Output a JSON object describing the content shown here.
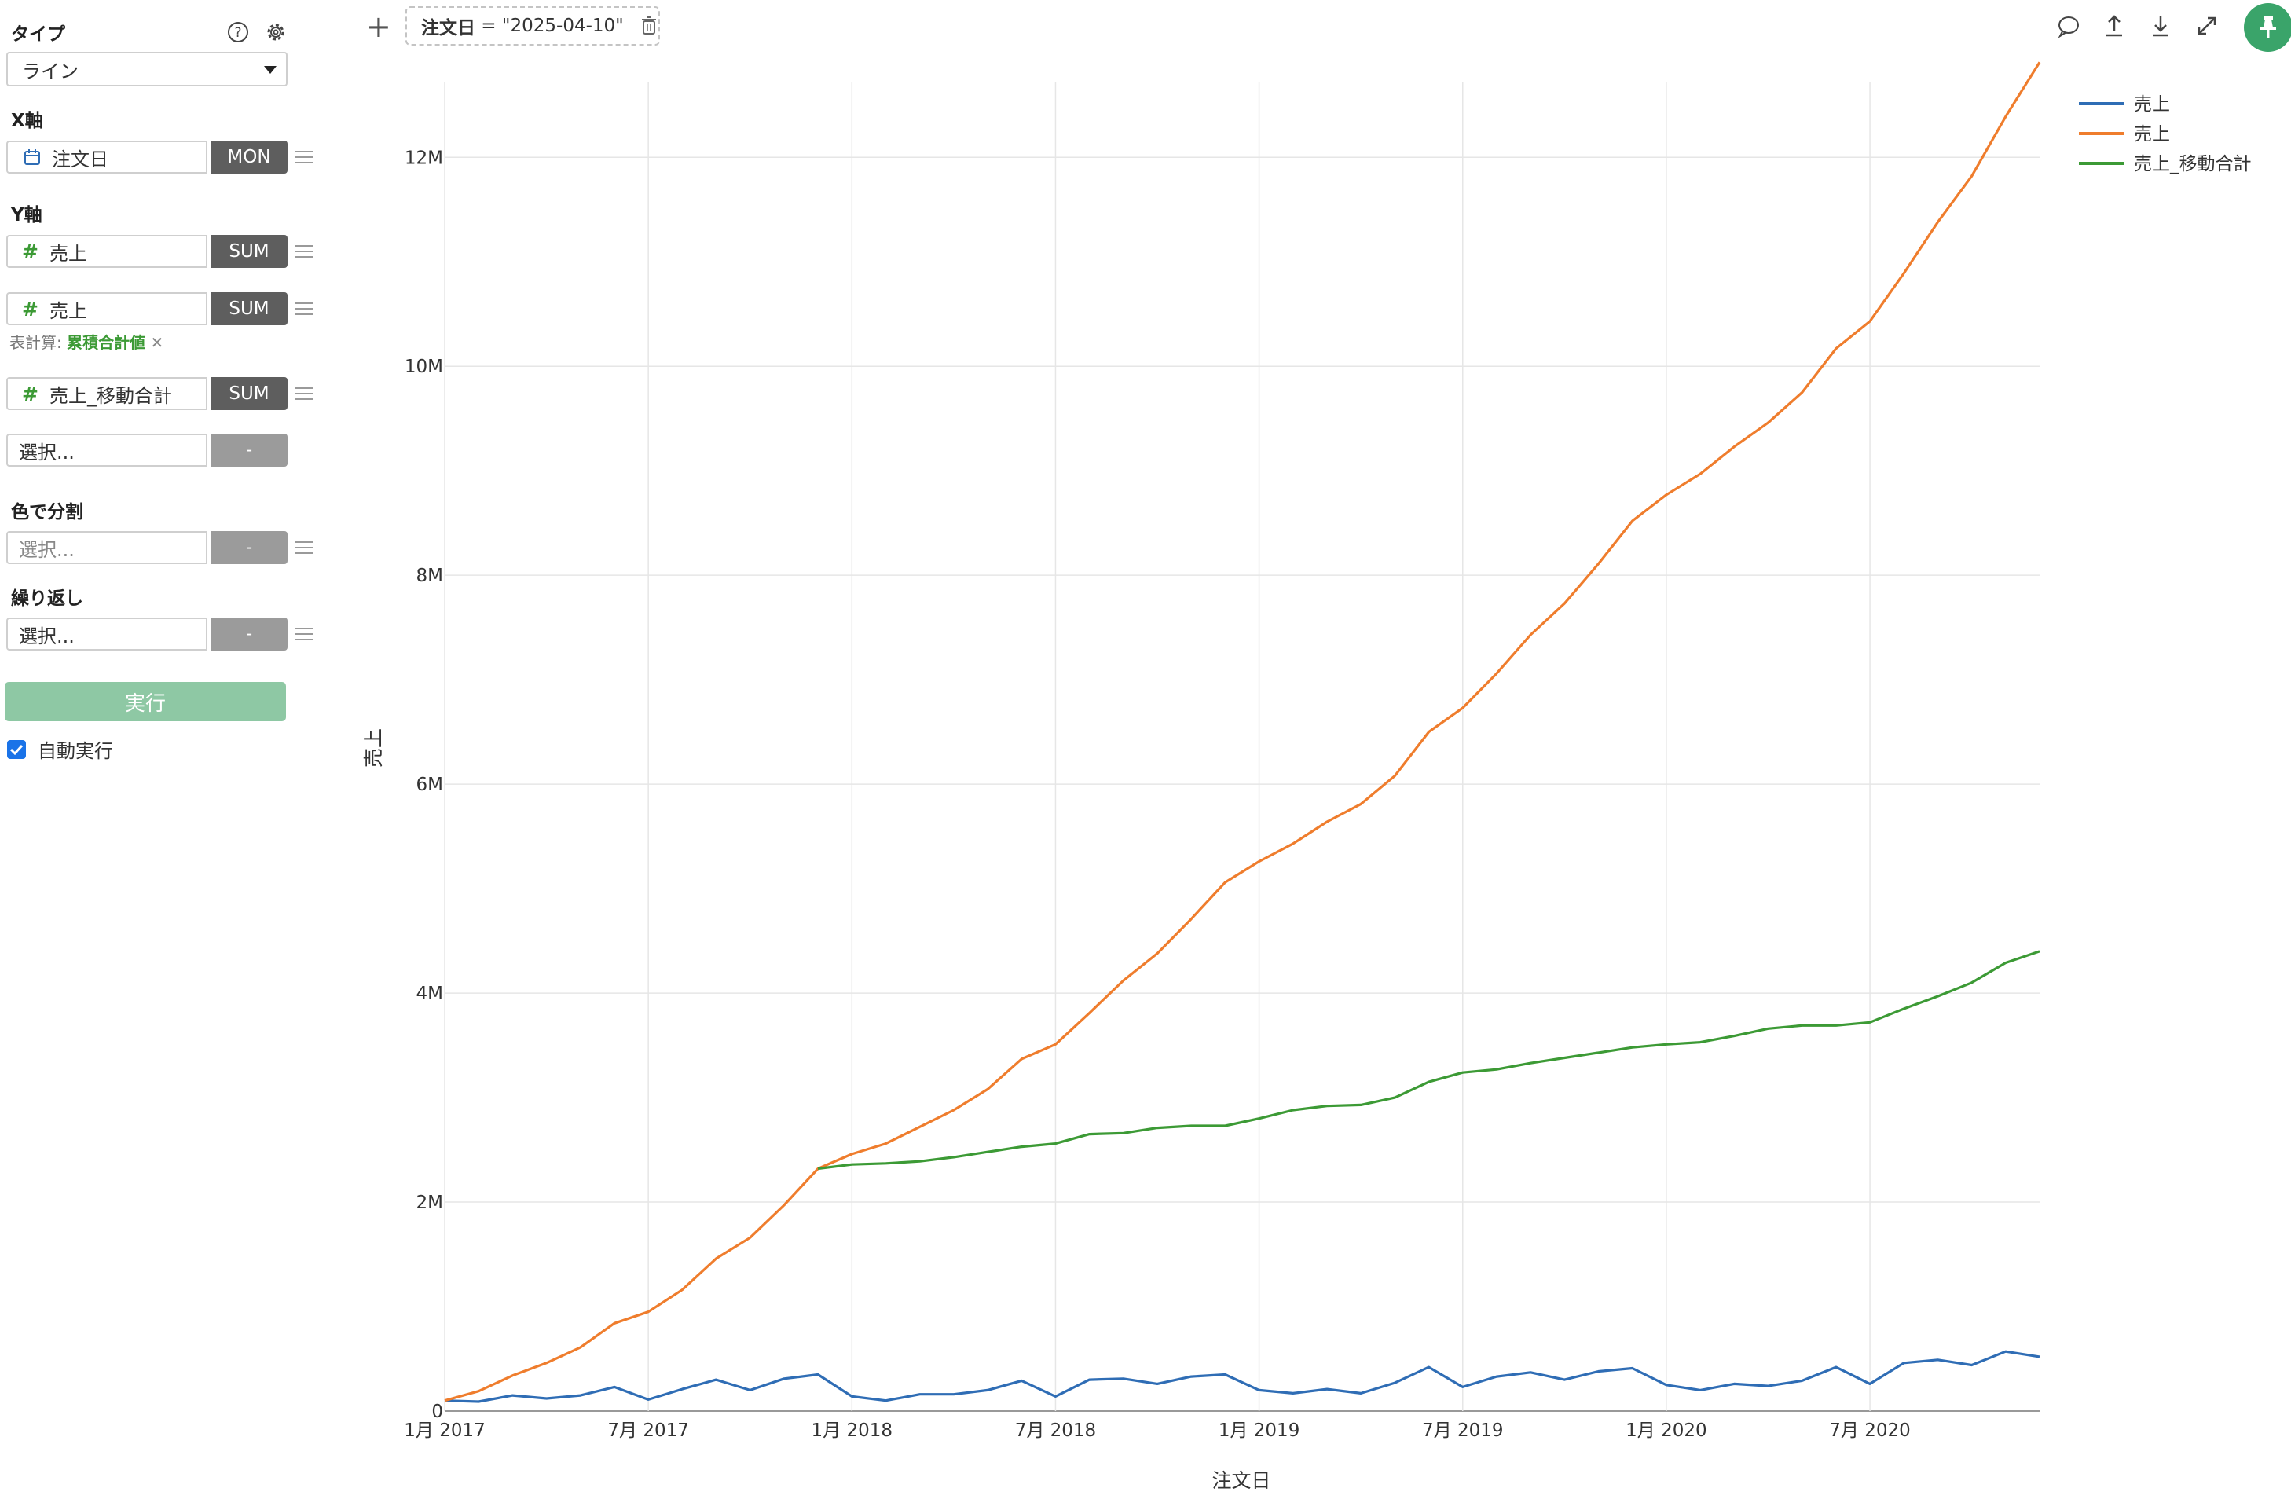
{
  "sidebar": {
    "type_label": "タイプ",
    "type_value": "ライン",
    "x_label": "X軸",
    "x_field": {
      "name": "注文日",
      "agg": "MON"
    },
    "y_label": "Y軸",
    "y_fields": [
      {
        "name": "売上",
        "agg": "SUM"
      },
      {
        "name": "売上",
        "agg": "SUM"
      },
      {
        "name": "売上_移動合計",
        "agg": "SUM"
      }
    ],
    "table_calc_prefix": "表計算:",
    "table_calc_value": "累積合計値",
    "select_placeholder": "選択...",
    "dash": "-",
    "color_split_label": "色で分割",
    "repeat_label": "繰り返し",
    "run_label": "実行",
    "auto_run_label": "自動実行"
  },
  "toolbar": {
    "filter_field": "注文日",
    "filter_op": " = ",
    "filter_value": "\"2025-04-10\""
  },
  "chart_data": {
    "type": "line",
    "xlabel": "注文日",
    "ylabel": "売上",
    "x_tick_labels": [
      "1月 2017",
      "7月 2017",
      "1月 2018",
      "7月 2018",
      "1月 2019",
      "7月 2019",
      "1月 2020",
      "7月 2020"
    ],
    "y_tick_labels": [
      "0",
      "2M",
      "4M",
      "6M",
      "8M",
      "10M",
      "12M"
    ],
    "ylim": [
      0,
      13100000
    ],
    "grid": true,
    "legend_position": "top-right",
    "x": [
      "2017-01",
      "2017-02",
      "2017-03",
      "2017-04",
      "2017-05",
      "2017-06",
      "2017-07",
      "2017-08",
      "2017-09",
      "2017-10",
      "2017-11",
      "2017-12",
      "2018-01",
      "2018-02",
      "2018-03",
      "2018-04",
      "2018-05",
      "2018-06",
      "2018-07",
      "2018-08",
      "2018-09",
      "2018-10",
      "2018-11",
      "2018-12",
      "2019-01",
      "2019-02",
      "2019-03",
      "2019-04",
      "2019-05",
      "2019-06",
      "2019-07",
      "2019-08",
      "2019-09",
      "2019-10",
      "2019-11",
      "2019-12",
      "2020-01",
      "2020-02",
      "2020-03",
      "2020-04",
      "2020-05",
      "2020-06",
      "2020-07",
      "2020-08",
      "2020-09",
      "2020-10",
      "2020-11",
      "2020-12"
    ],
    "series": [
      {
        "name": "売上",
        "color": "#2f6db5",
        "values": [
          100000,
          90000,
          150000,
          120000,
          150000,
          230000,
          110000,
          210000,
          300000,
          200000,
          310000,
          350000,
          140000,
          100000,
          160000,
          160000,
          200000,
          290000,
          140000,
          300000,
          310000,
          260000,
          330000,
          350000,
          200000,
          170000,
          210000,
          170000,
          270000,
          420000,
          230000,
          330000,
          370000,
          300000,
          380000,
          410000,
          250000,
          200000,
          260000,
          240000,
          290000,
          420000,
          260000,
          460000,
          490000,
          440000,
          570000,
          520000
        ]
      },
      {
        "name": "売上",
        "color": "#ef7d2d",
        "values": [
          100000,
          190000,
          340000,
          460000,
          610000,
          840000,
          950000,
          1160000,
          1460000,
          1660000,
          1970000,
          2320000,
          2460000,
          2560000,
          2720000,
          2880000,
          3080000,
          3370000,
          3510000,
          3810000,
          4120000,
          4380000,
          4710000,
          5060000,
          5260000,
          5430000,
          5640000,
          5810000,
          6080000,
          6500000,
          6730000,
          7060000,
          7430000,
          7730000,
          8110000,
          8520000,
          8770000,
          8970000,
          9230000,
          9460000,
          9750000,
          10170000,
          10430000,
          10890000,
          11380000,
          11820000,
          12390000,
          12910000
        ]
      },
      {
        "name": "売上_移動合計",
        "color": "#3c9a35",
        "values": [
          null,
          null,
          null,
          null,
          null,
          null,
          null,
          null,
          null,
          null,
          null,
          2320000,
          2360000,
          2370000,
          2390000,
          2430000,
          2480000,
          2530000,
          2560000,
          2650000,
          2660000,
          2710000,
          2730000,
          2730000,
          2800000,
          2880000,
          2920000,
          2930000,
          3000000,
          3150000,
          3240000,
          3270000,
          3330000,
          3380000,
          3430000,
          3480000,
          3510000,
          3530000,
          3590000,
          3660000,
          3690000,
          3690000,
          3720000,
          3850000,
          3970000,
          4100000,
          4290000,
          4400000
        ]
      }
    ]
  }
}
